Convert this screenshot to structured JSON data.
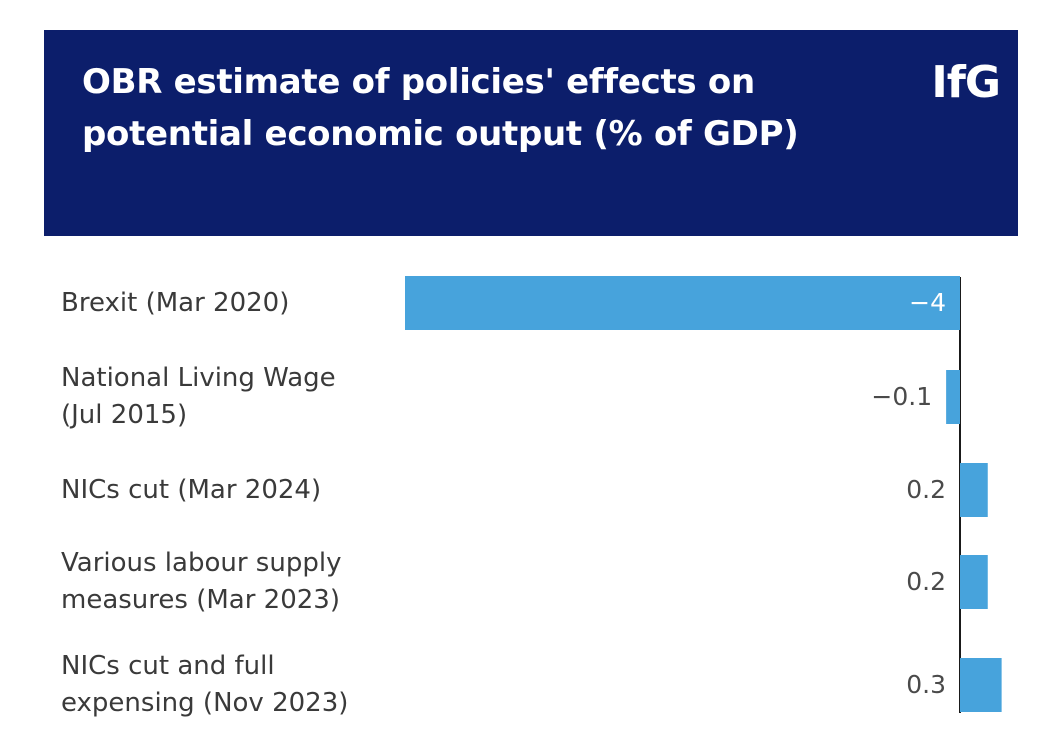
{
  "header": {
    "title": "OBR estimate of policies' effects on potential economic output (% of GDP)",
    "logo": "IfG"
  },
  "colors": {
    "header_bg": "#0c1e6b",
    "bar": "#47a3dc",
    "axis": "#1a1a1a",
    "label": "#3a3a3a"
  },
  "chart_data": {
    "type": "bar",
    "orientation": "horizontal",
    "title": "OBR estimate of policies' effects on potential economic output (% of GDP)",
    "xlabel": "",
    "ylabel": "",
    "categories": [
      "Brexit (Mar 2020)",
      "National Living Wage (Jul 2015)",
      "NICs cut (Mar 2024)",
      "Various labour supply measures (Mar 2023)",
      "NICs cut and full expensing (Nov 2023)"
    ],
    "category_lines": [
      [
        "Brexit (Mar 2020)"
      ],
      [
        "National Living Wage",
        "(Jul 2015)"
      ],
      [
        "NICs cut (Mar 2024)"
      ],
      [
        "Various labour supply",
        "measures (Mar 2023)"
      ],
      [
        "NICs cut and full",
        "expensing (Nov 2023)"
      ]
    ],
    "values": [
      -4,
      -0.1,
      0.2,
      0.2,
      0.3
    ],
    "value_labels": [
      "−4",
      "−0.1",
      "0.2",
      "0.2",
      "0.3"
    ],
    "xlim": [
      -4,
      0.3
    ],
    "grid": false,
    "legend": "none"
  }
}
